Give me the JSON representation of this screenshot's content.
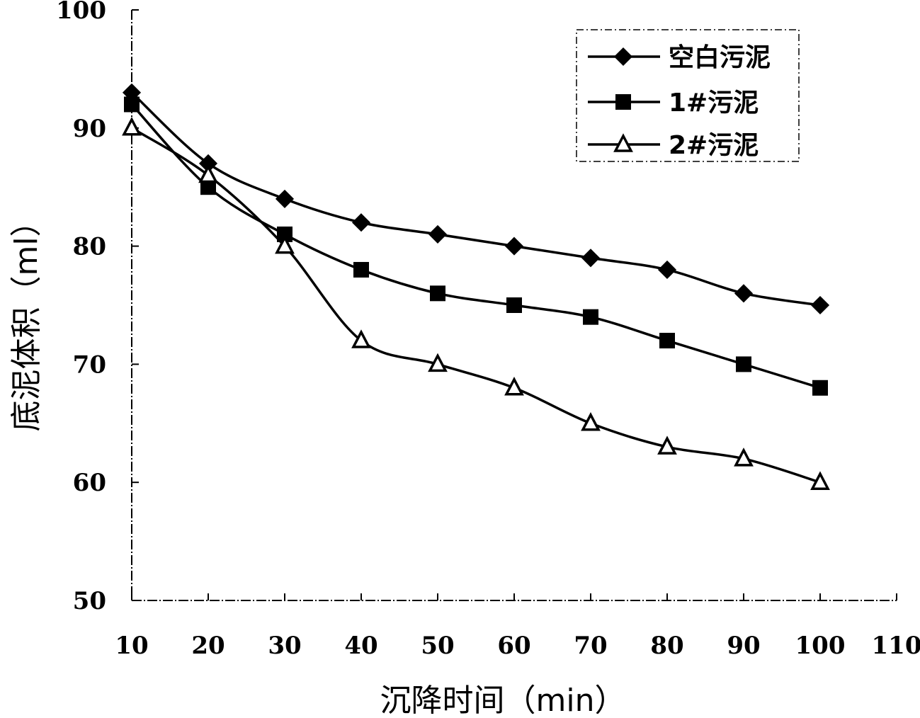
{
  "chart_data": {
    "type": "line",
    "title": "",
    "xlabel": "沉降时间（min）",
    "ylabel": "底泥体积（ml）",
    "xlim": [
      10,
      110
    ],
    "ylim": [
      50,
      100
    ],
    "x_ticks": [
      10,
      20,
      30,
      40,
      50,
      60,
      70,
      80,
      90,
      100,
      110
    ],
    "y_ticks": [
      50,
      60,
      70,
      80,
      90,
      100
    ],
    "grid": false,
    "legend_position": "top-right",
    "x": [
      10,
      20,
      30,
      40,
      50,
      60,
      70,
      80,
      90,
      100
    ],
    "series": [
      {
        "name": "空白污泥",
        "marker": "diamond",
        "color": "#000000",
        "values": [
          93,
          87,
          84,
          82,
          81,
          80,
          79,
          78,
          76,
          75
        ]
      },
      {
        "name": "1#污泥",
        "marker": "square",
        "color": "#000000",
        "values": [
          92,
          85,
          81,
          78,
          76,
          75,
          74,
          72,
          70,
          68
        ]
      },
      {
        "name": "2#污泥",
        "marker": "triangle",
        "color": "#000000",
        "values": [
          90,
          86,
          80,
          72,
          70,
          68,
          65,
          63,
          62,
          60
        ]
      }
    ]
  }
}
